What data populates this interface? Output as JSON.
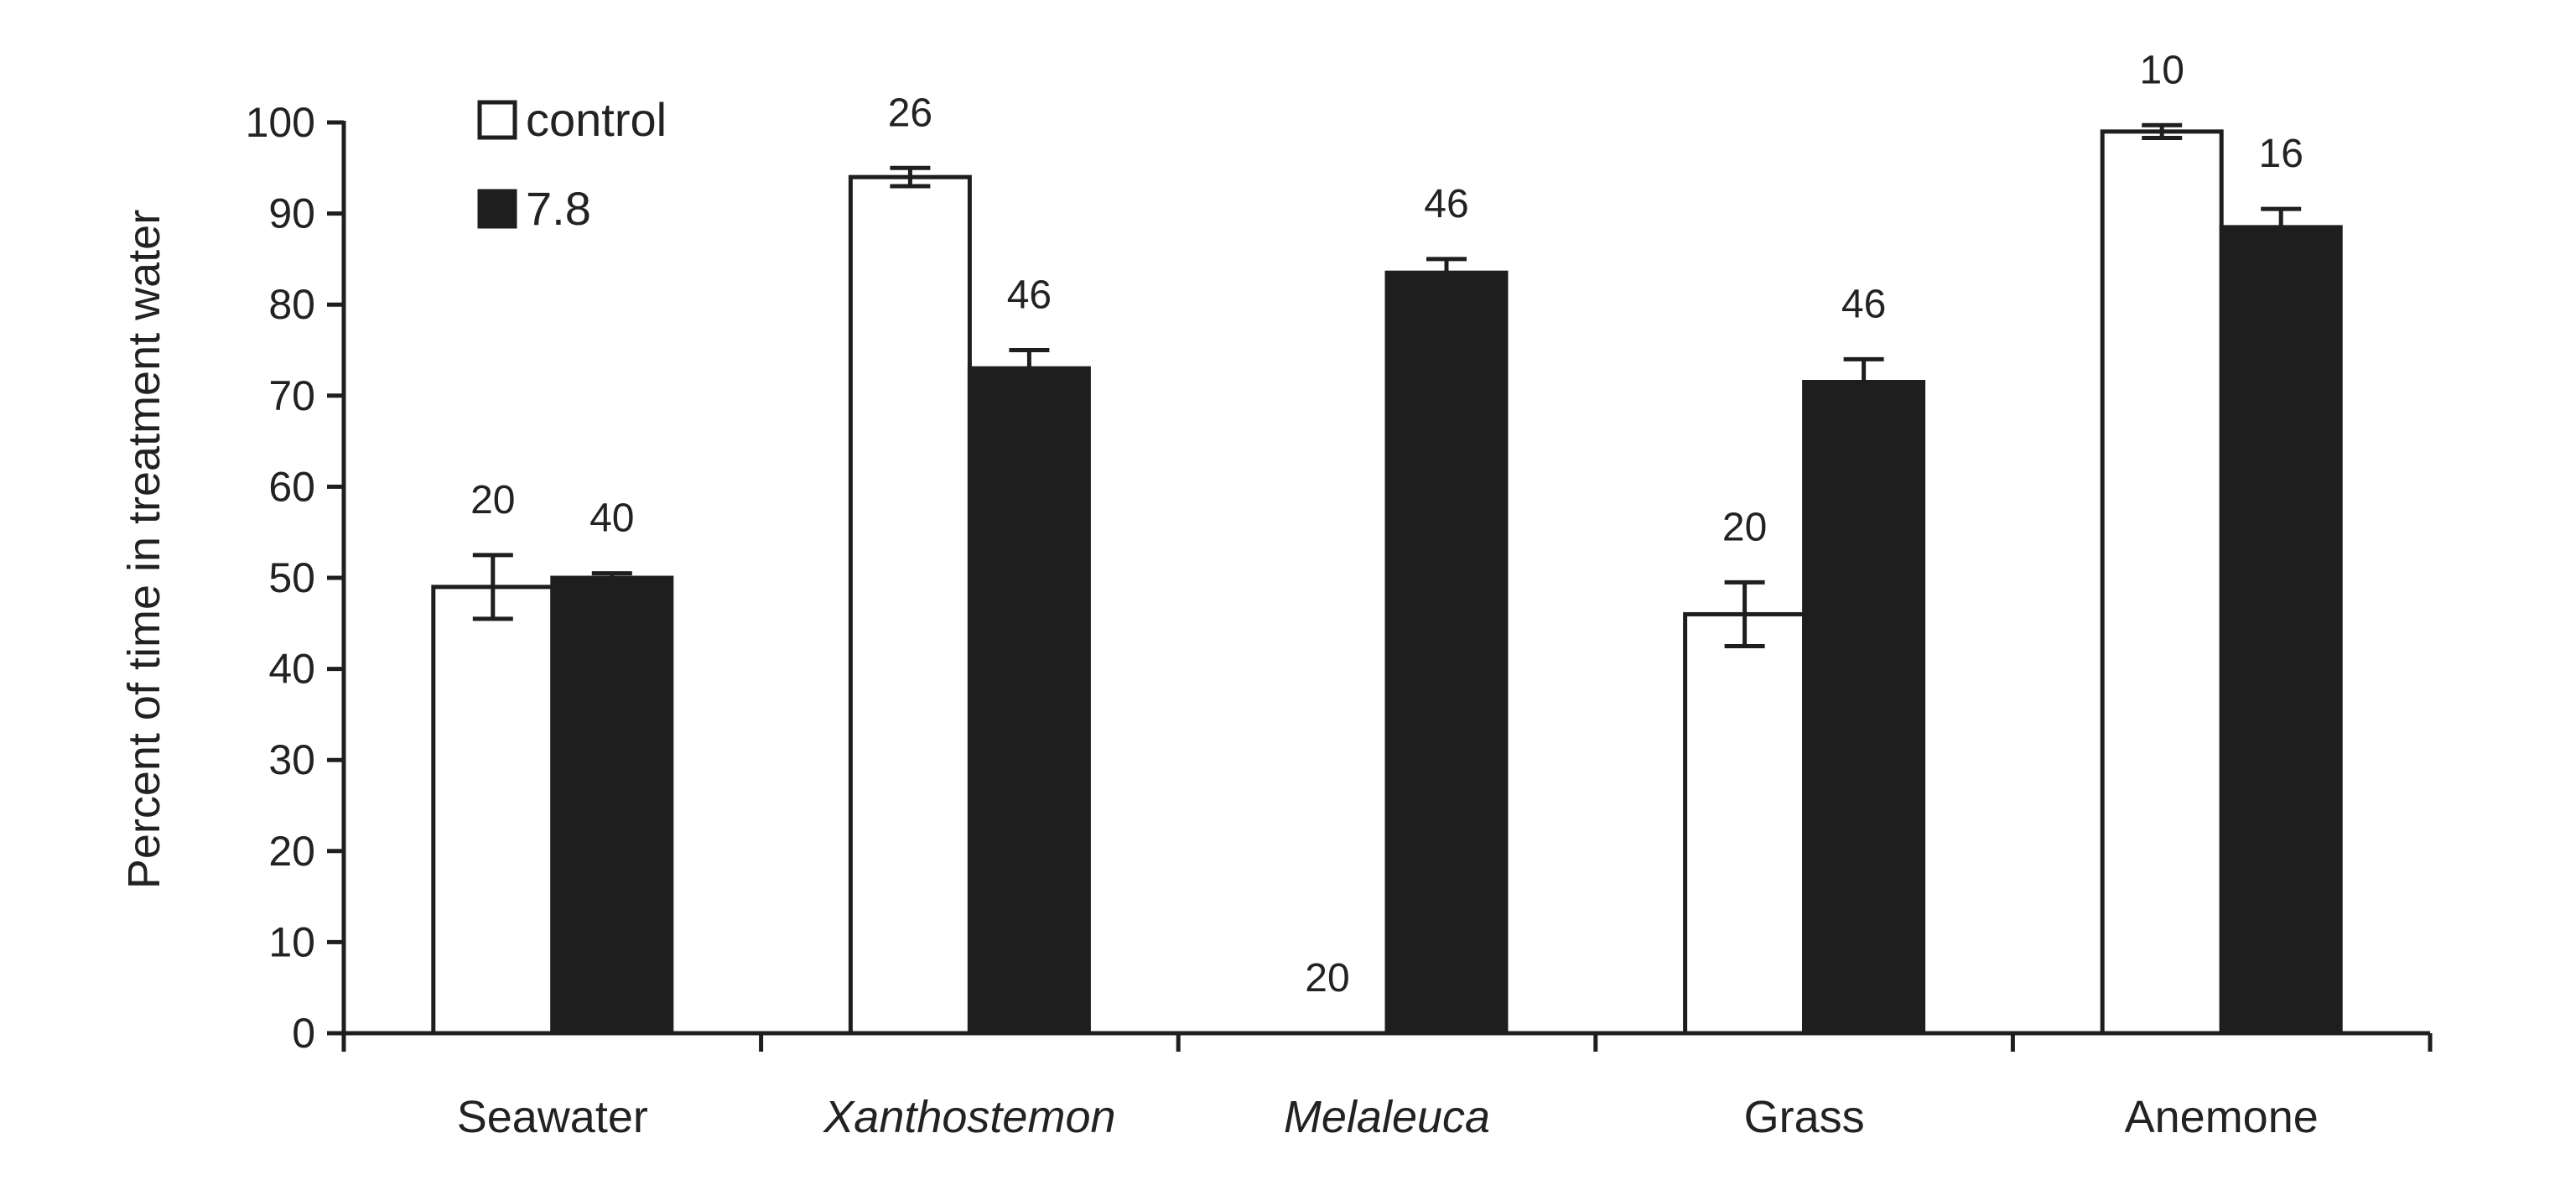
{
  "chart_data": {
    "type": "bar",
    "title": "",
    "xlabel": "",
    "ylabel": "Percent of time in treatment water",
    "ylim": [
      0,
      100
    ],
    "yticks": [
      0,
      10,
      20,
      30,
      40,
      50,
      60,
      70,
      80,
      90,
      100
    ],
    "categories": [
      "Seawater",
      "Xanthostemon",
      "Melaleuca",
      "Grass",
      "Anemone"
    ],
    "italic_categories": [
      "Xanthostemon",
      "Melaleuca"
    ],
    "series": [
      {
        "name": "control",
        "color": "#ffffff",
        "values": [
          49,
          94,
          0,
          46,
          99
        ],
        "errors": [
          3.5,
          1,
          0,
          3.5,
          0.7
        ],
        "labels": [
          "20",
          "26",
          "20",
          "20",
          "10"
        ]
      },
      {
        "name": "7.8",
        "color": "#1e1e1e",
        "values": [
          50,
          73,
          83.5,
          71.5,
          88.5
        ],
        "errors": [
          0.5,
          2,
          1.5,
          2.5,
          2
        ],
        "labels": [
          "40",
          "46",
          "46",
          "46",
          "16"
        ]
      }
    ],
    "legend_position": "top-left",
    "grid": false
  }
}
